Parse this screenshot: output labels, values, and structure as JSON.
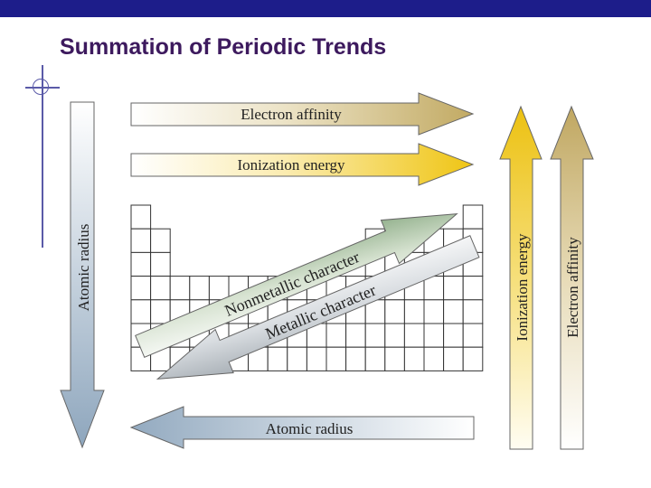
{
  "slide": {
    "title": "Summation of Periodic Trends"
  },
  "diagram": {
    "arrows": {
      "electron_affinity_horizontal": "Electron affinity",
      "ionization_energy_horizontal": "Ionization energy",
      "nonmetallic_character": "Nonmetallic character",
      "metallic_character": "Metallic character",
      "atomic_radius_horizontal": "Atomic radius",
      "atomic_radius_vertical": "Atomic radius",
      "ionization_energy_vertical": "Ionization energy",
      "electron_affinity_vertical": "Electron affinity"
    },
    "colors": {
      "slide_bar": "#1d1d8a",
      "title": "#3d1a5e",
      "electron_affinity": "#c8b06a",
      "ionization_energy": "#eec81a",
      "nonmetallic": "#8fae8a",
      "metallic": "#c9ced3",
      "atomic_radius": "#9fb4c7"
    }
  }
}
